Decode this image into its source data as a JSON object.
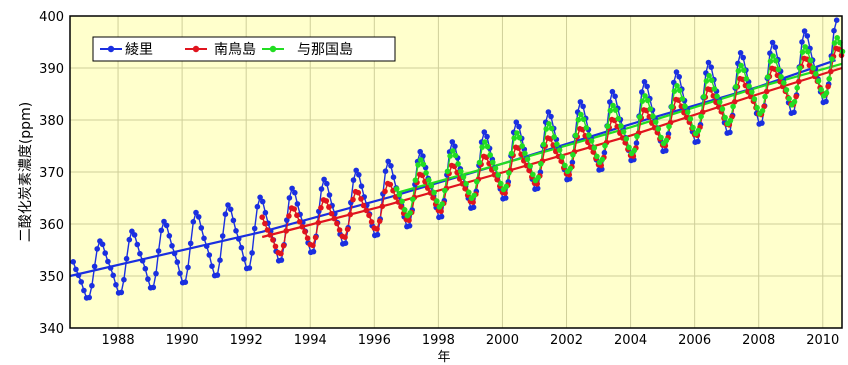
{
  "chart_data": {
    "type": "line",
    "title": "",
    "xlabel": "年",
    "ylabel": "二酸化炭素濃度(ppm)",
    "xlim": [
      1986.5,
      2010.6
    ],
    "ylim": [
      340,
      400
    ],
    "xticks": [
      1988,
      1990,
      1992,
      1994,
      1996,
      1998,
      2000,
      2002,
      2004,
      2006,
      2008,
      2010
    ],
    "yticks": [
      340,
      350,
      360,
      370,
      380,
      390,
      400
    ],
    "grid": true,
    "grid_color": "#cfcf9a",
    "background": "#ffffcc",
    "legend_position": "top-left",
    "series": [
      {
        "name": "綾里",
        "color": "#1a2fe0",
        "start_year": 1986.6,
        "end_year": 2010.4,
        "trend": [
          [
            1986.5,
            350.0
          ],
          [
            1992.5,
            358.5
          ],
          [
            1996.5,
            365.2
          ],
          [
            2000,
            371.6
          ],
          [
            2004,
            379.2
          ],
          [
            2008,
            386.4
          ],
          [
            2010.4,
            391.5
          ]
        ],
        "amplitude": [
          [
            1986.5,
            4.5
          ],
          [
            1990,
            6.0
          ],
          [
            2010.4,
            7.0
          ]
        ]
      },
      {
        "name": "南鳥島",
        "color": "#e0141e",
        "start_year": 1992.5,
        "end_year": 2010.6,
        "trend": [
          [
            1992.5,
            357.5
          ],
          [
            1996.5,
            363.8
          ],
          [
            2000,
            369.9
          ],
          [
            2004,
            377.0
          ],
          [
            2008,
            385.0
          ],
          [
            2010.6,
            390.0
          ]
        ],
        "amplitude": [
          [
            1992.5,
            3.8
          ],
          [
            2010.6,
            3.8
          ]
        ]
      },
      {
        "name": "与那国島",
        "color": "#22dd22",
        "start_year": 1996.7,
        "end_year": 2010.6,
        "trend": [
          [
            1996.7,
            366.0
          ],
          [
            2000,
            371.6
          ],
          [
            2004,
            378.6
          ],
          [
            2008,
            386.3
          ],
          [
            2010.6,
            390.8
          ]
        ],
        "amplitude": [
          [
            1996.7,
            4.6
          ],
          [
            2010.6,
            4.8
          ]
        ]
      }
    ]
  }
}
